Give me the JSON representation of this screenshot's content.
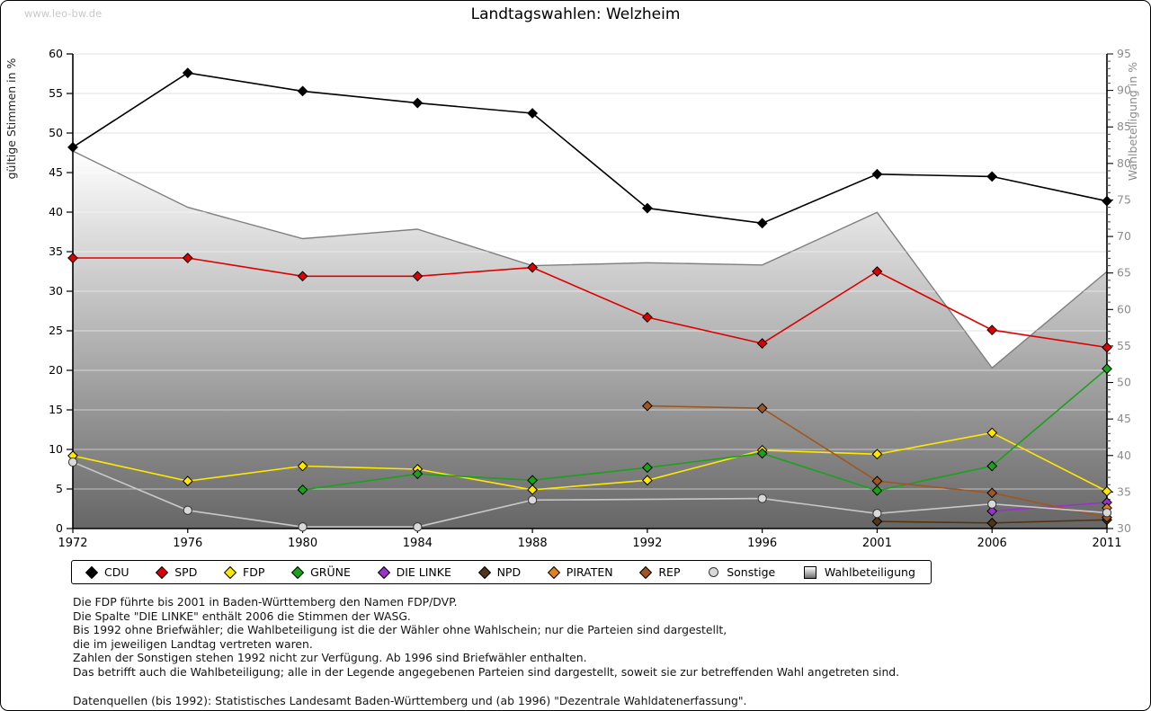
{
  "watermark": "www.leo-bw.de",
  "title": "Landtagswahlen: Welzheim",
  "chart_data": {
    "type": "line",
    "title": "Landtagswahlen: Welzheim",
    "x": [
      1972,
      1976,
      1980,
      1984,
      1988,
      1992,
      1996,
      2001,
      2006,
      2011
    ],
    "ylabel_left": "gültige Stimmen in %",
    "ylabel_right": "Wahlbeteiligung in %",
    "ylim_left": [
      0,
      60
    ],
    "ylim_right": [
      30,
      95
    ],
    "grid": true,
    "legend_position": "bottom",
    "series": [
      {
        "name": "CDU",
        "color": "#000000",
        "marker": "diamond",
        "values": [
          48.2,
          57.6,
          55.3,
          53.8,
          52.5,
          40.5,
          38.6,
          44.8,
          44.5,
          41.4
        ]
      },
      {
        "name": "SPD",
        "color": "#dd0000",
        "marker": "diamond",
        "values": [
          34.2,
          34.2,
          31.9,
          31.9,
          33.0,
          26.7,
          23.4,
          32.5,
          25.1,
          22.9
        ]
      },
      {
        "name": "FDP",
        "color": "#ffe800",
        "marker": "diamond",
        "values": [
          9.2,
          6.0,
          7.9,
          7.5,
          4.9,
          6.1,
          9.9,
          9.4,
          12.1,
          4.7
        ]
      },
      {
        "name": "GRÜNE",
        "color": "#19a319",
        "marker": "diamond",
        "values": [
          null,
          null,
          4.9,
          6.9,
          6.1,
          7.7,
          9.5,
          4.8,
          7.9,
          20.2
        ]
      },
      {
        "name": "DIE LINKE",
        "color": "#9932cc",
        "marker": "diamond",
        "values": [
          null,
          null,
          null,
          null,
          null,
          null,
          null,
          null,
          2.2,
          3.3
        ]
      },
      {
        "name": "NPD",
        "color": "#533516",
        "marker": "diamond",
        "values": [
          null,
          null,
          null,
          null,
          null,
          null,
          null,
          0.9,
          0.7,
          1.1
        ]
      },
      {
        "name": "PIRATEN",
        "color": "#e2801e",
        "marker": "diamond",
        "values": [
          null,
          null,
          null,
          null,
          null,
          null,
          null,
          null,
          null,
          2.6
        ]
      },
      {
        "name": "REP",
        "color": "#a0571f",
        "marker": "diamond",
        "values": [
          null,
          null,
          null,
          null,
          null,
          15.5,
          15.2,
          6.0,
          4.5,
          1.4
        ]
      },
      {
        "name": "Sonstige",
        "color": "#c8c8c8",
        "marker": "circle",
        "marker_fill": "#d9d9d9",
        "bridge_gaps": true,
        "values": [
          8.4,
          2.3,
          0.2,
          0.2,
          3.6,
          null,
          3.8,
          1.9,
          3.1,
          2.0
        ]
      }
    ],
    "turnout": {
      "name": "Wahlbeteiligung",
      "axis": "right",
      "style": "area",
      "edge_color": "#7f7f7f",
      "gradient": [
        "#ffffff",
        "#666666"
      ],
      "values": [
        81.7,
        74.0,
        69.7,
        71.0,
        66.0,
        66.4,
        66.1,
        73.3,
        52.0,
        65.2
      ]
    }
  },
  "footnotes": {
    "lines": [
      "Die FDP führte bis 2001 in Baden-Württemberg den Namen FDP/DVP.",
      "Die Spalte \"DIE LINKE\" enthält 2006 die Stimmen der WASG.",
      "Bis 1992 ohne Briefwähler; die Wahlbeteiligung ist die der Wähler ohne Wahlschein; nur die Parteien sind dargestellt,",
      "die im jeweiligen Landtag vertreten waren.",
      "Zahlen der Sonstigen stehen 1992 nicht zur Verfügung. Ab 1996 sind Briefwähler enthalten.",
      "Das betrifft auch die Wahlbeteiligung; alle in der Legende angegebenen Parteien sind dargestellt, soweit sie zur betreffenden Wahl angetreten sind."
    ],
    "source": "Datenquellen (bis 1992): Statistisches Landesamt Baden-Württemberg und (ab 1996) \"Dezentrale Wahldatenerfassung\"."
  }
}
